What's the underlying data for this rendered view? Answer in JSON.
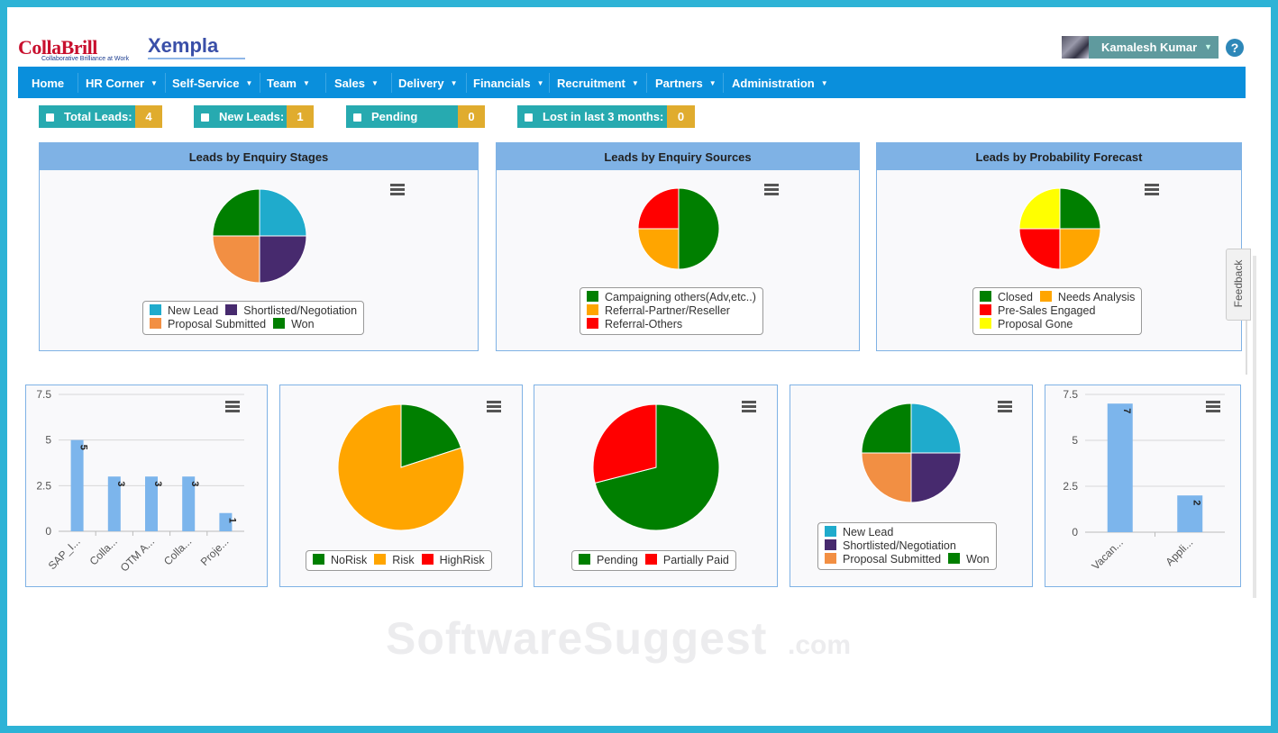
{
  "brand": {
    "logo1": "CollaBrill",
    "logo1_tagline": "Collaborative Brilliance at Work",
    "logo2": "Xempla"
  },
  "user": {
    "name": "Kamalesh Kumar"
  },
  "help_icon": "?",
  "nav": [
    {
      "label": "Home",
      "dropdown": false
    },
    {
      "label": "HR Corner",
      "dropdown": true
    },
    {
      "label": "Self-Service",
      "dropdown": true
    },
    {
      "label": "Team",
      "dropdown": true
    },
    {
      "label": "Sales",
      "dropdown": true
    },
    {
      "label": "Delivery",
      "dropdown": true
    },
    {
      "label": "Financials",
      "dropdown": true
    },
    {
      "label": "Recruitment",
      "dropdown": true
    },
    {
      "label": "Partners",
      "dropdown": true
    },
    {
      "label": "Administration",
      "dropdown": true
    }
  ],
  "kpis": [
    {
      "label": "Total Leads:",
      "value": "4"
    },
    {
      "label": "New Leads:",
      "value": "1"
    },
    {
      "label": "Pending Leads:",
      "value": "0"
    },
    {
      "label": "Lost in last 3 months:",
      "value": "0"
    }
  ],
  "feedback_label": "Feedback",
  "watermark": {
    "main": "SoftwareSuggest",
    "suffix": ".com"
  },
  "colors": {
    "teal": "#1fabcc",
    "purple": "#472a6e",
    "orange": "#f28f43",
    "green": "#007f00",
    "amber": "#ffa500",
    "red": "#ff0000",
    "yellow": "#ffff00",
    "bar": "#7cb5ec",
    "nav_bg": "#0a8fdc",
    "kpi_bg": "#27aab0",
    "kpi_val_bg": "#e0ac2e",
    "panel_head": "#7fb2e5"
  },
  "chart_data": [
    {
      "type": "pie",
      "title": "Leads by Enquiry Stages",
      "categories": [
        "New Lead",
        "Shortlisted/Negotiation",
        "Proposal Submitted",
        "Won"
      ],
      "values": [
        1,
        1,
        1,
        1
      ],
      "colors": [
        "#1fabcc",
        "#472a6e",
        "#f28f43",
        "#007f00"
      ],
      "legend_rows": [
        [
          0,
          1
        ],
        [
          2,
          3
        ]
      ]
    },
    {
      "type": "pie",
      "title": "Leads by Enquiry Sources",
      "categories": [
        "Campaigning others(Adv,etc..)",
        "Referral-Partner/Reseller",
        "Referral-Others"
      ],
      "values": [
        2,
        1,
        1
      ],
      "colors": [
        "#007f00",
        "#ffa500",
        "#ff0000"
      ],
      "legend_rows": [
        [
          0
        ],
        [
          1
        ],
        [
          2
        ]
      ]
    },
    {
      "type": "pie",
      "title": "Leads by Probability Forecast",
      "categories": [
        "Closed",
        "Needs Analysis",
        "Pre-Sales Engaged",
        "Proposal Gone"
      ],
      "values": [
        1,
        1,
        1,
        1
      ],
      "colors": [
        "#007f00",
        "#ffa500",
        "#ff0000",
        "#ffff00"
      ],
      "legend_rows": [
        [
          0,
          1
        ],
        [
          2
        ],
        [
          3
        ]
      ]
    },
    {
      "type": "bar",
      "title": "",
      "categories": [
        "SAP_I...",
        "Colla...",
        "OTM A...",
        "Colla...",
        "Proje..."
      ],
      "values": [
        5,
        3,
        3,
        3,
        1
      ],
      "ylim": [
        0,
        7.5
      ],
      "yticks": [
        "0",
        "2.5",
        "5",
        "7.5"
      ],
      "grid": true,
      "data_labels": true
    },
    {
      "type": "pie",
      "title": "",
      "categories": [
        "NoRisk",
        "Risk",
        "HighRisk"
      ],
      "values": [
        20,
        80,
        0
      ],
      "colors": [
        "#007f00",
        "#ffa500",
        "#ff0000"
      ],
      "legend_rows": [
        [
          0,
          1,
          2
        ]
      ]
    },
    {
      "type": "pie",
      "title": "",
      "categories": [
        "Pending",
        "Partially Paid"
      ],
      "values": [
        71,
        29
      ],
      "colors": [
        "#007f00",
        "#ff0000"
      ],
      "legend_rows": [
        [
          0,
          1
        ]
      ]
    },
    {
      "type": "pie",
      "title": "",
      "categories": [
        "New Lead",
        "Shortlisted/Negotiation",
        "Proposal Submitted",
        "Won"
      ],
      "values": [
        1,
        1,
        1,
        1
      ],
      "colors": [
        "#1fabcc",
        "#472a6e",
        "#f28f43",
        "#007f00"
      ],
      "legend_rows": [
        [
          0
        ],
        [
          1
        ],
        [
          2,
          3
        ]
      ]
    },
    {
      "type": "bar",
      "title": "",
      "categories": [
        "Vacan...",
        "Appli..."
      ],
      "values": [
        7,
        2
      ],
      "ylim": [
        0,
        7.5
      ],
      "yticks": [
        "0",
        "2.5",
        "5",
        "7.5"
      ],
      "grid": true,
      "data_labels": true
    }
  ]
}
